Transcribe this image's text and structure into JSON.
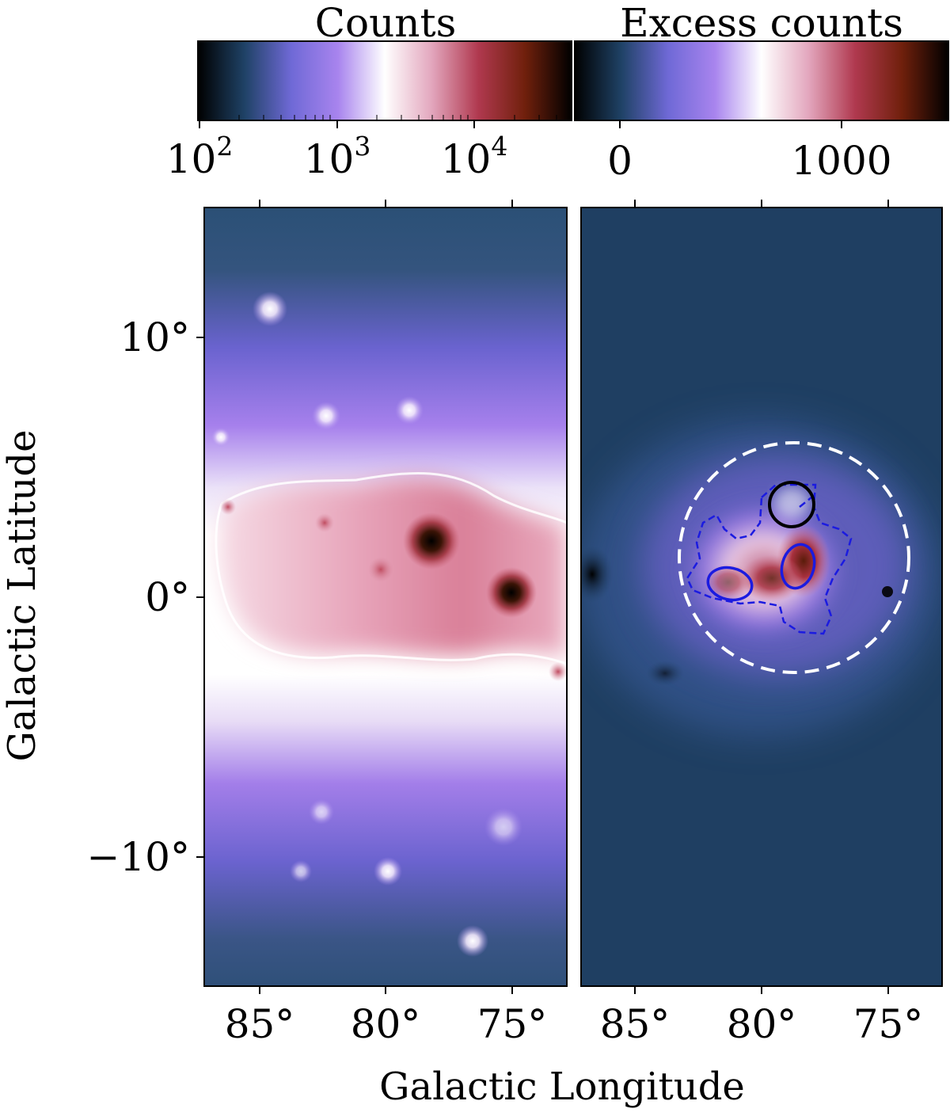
{
  "colorbars": {
    "counts": {
      "title": "Counts",
      "ticks": [
        {
          "base": "10",
          "exp": "2"
        },
        {
          "base": "10",
          "exp": "3"
        },
        {
          "base": "10",
          "exp": "4"
        }
      ]
    },
    "excess": {
      "title": "Excess counts",
      "ticks": [
        "0",
        "1000"
      ]
    }
  },
  "axes": {
    "xlabel": "Galactic Longitude",
    "ylabel": "Galactic Latitude",
    "xticks": [
      "85°",
      "80°",
      "75°"
    ],
    "yticks": [
      "10°",
      "0°",
      "−10°"
    ]
  },
  "colors": {
    "colormap": [
      "#000000",
      "#1f4266",
      "#6f69d6",
      "#a884ee",
      "#ffffff",
      "#e3a7be",
      "#b0394f",
      "#70200c",
      "#000000"
    ],
    "background_excess": "#1f3f62",
    "contour_blue": "#1b1be0",
    "circle_black": "#000000",
    "circle_dashed": "#ffffff"
  },
  "chart_data": [
    {
      "type": "heatmap",
      "panel": "Counts map",
      "colorbar": "Counts",
      "color_scale": "log",
      "color_range": [
        100,
        40000
      ],
      "xlabel": "Galactic Longitude",
      "ylabel": "Galactic Latitude",
      "xlim": [
        87.2,
        72.8
      ],
      "ylim": [
        -15,
        15
      ],
      "xticks": [
        85,
        80,
        75
      ],
      "yticks": [
        10,
        0,
        -10
      ],
      "features": [
        {
          "name": "bright point source",
          "l": 78.2,
          "b": 2.1
        },
        {
          "name": "bright point source",
          "l": 75.0,
          "b": 0.2
        },
        {
          "name": "source",
          "l": 80.2,
          "b": 1.1
        },
        {
          "name": "source",
          "l": 84.6,
          "b": 11.0
        },
        {
          "name": "source",
          "l": 81.4,
          "b": 7.0
        },
        {
          "name": "source",
          "l": 83.0,
          "b": 6.9
        },
        {
          "name": "source",
          "l": 79.2,
          "b": -10.5
        },
        {
          "name": "source",
          "l": 76.7,
          "b": -13.3
        }
      ]
    },
    {
      "type": "heatmap",
      "panel": "Excess counts map",
      "colorbar": "Excess counts",
      "color_scale": "linear",
      "color_range": [
        -500,
        1500
      ],
      "xlabel": "Galactic Longitude",
      "ylabel": "Galactic Latitude",
      "xlim": [
        87.2,
        72.8
      ],
      "ylim": [
        -15,
        15
      ],
      "xticks": [
        85,
        80,
        75
      ],
      "annotations": [
        {
          "shape": "dashed circle",
          "color": "white",
          "l": 79.0,
          "b": 1.4,
          "radius_deg": 4.4
        },
        {
          "shape": "circle",
          "color": "black",
          "l": 78.8,
          "b": 3.6,
          "radius_deg": 0.9
        },
        {
          "shape": "solid contour",
          "color": "blue",
          "l": 78.4,
          "b": 1.2
        },
        {
          "shape": "solid contour",
          "color": "blue",
          "l": 81.3,
          "b": 0.6
        },
        {
          "shape": "dashed contour",
          "color": "blue",
          "l": 79.5,
          "b": 1.5
        }
      ]
    }
  ]
}
